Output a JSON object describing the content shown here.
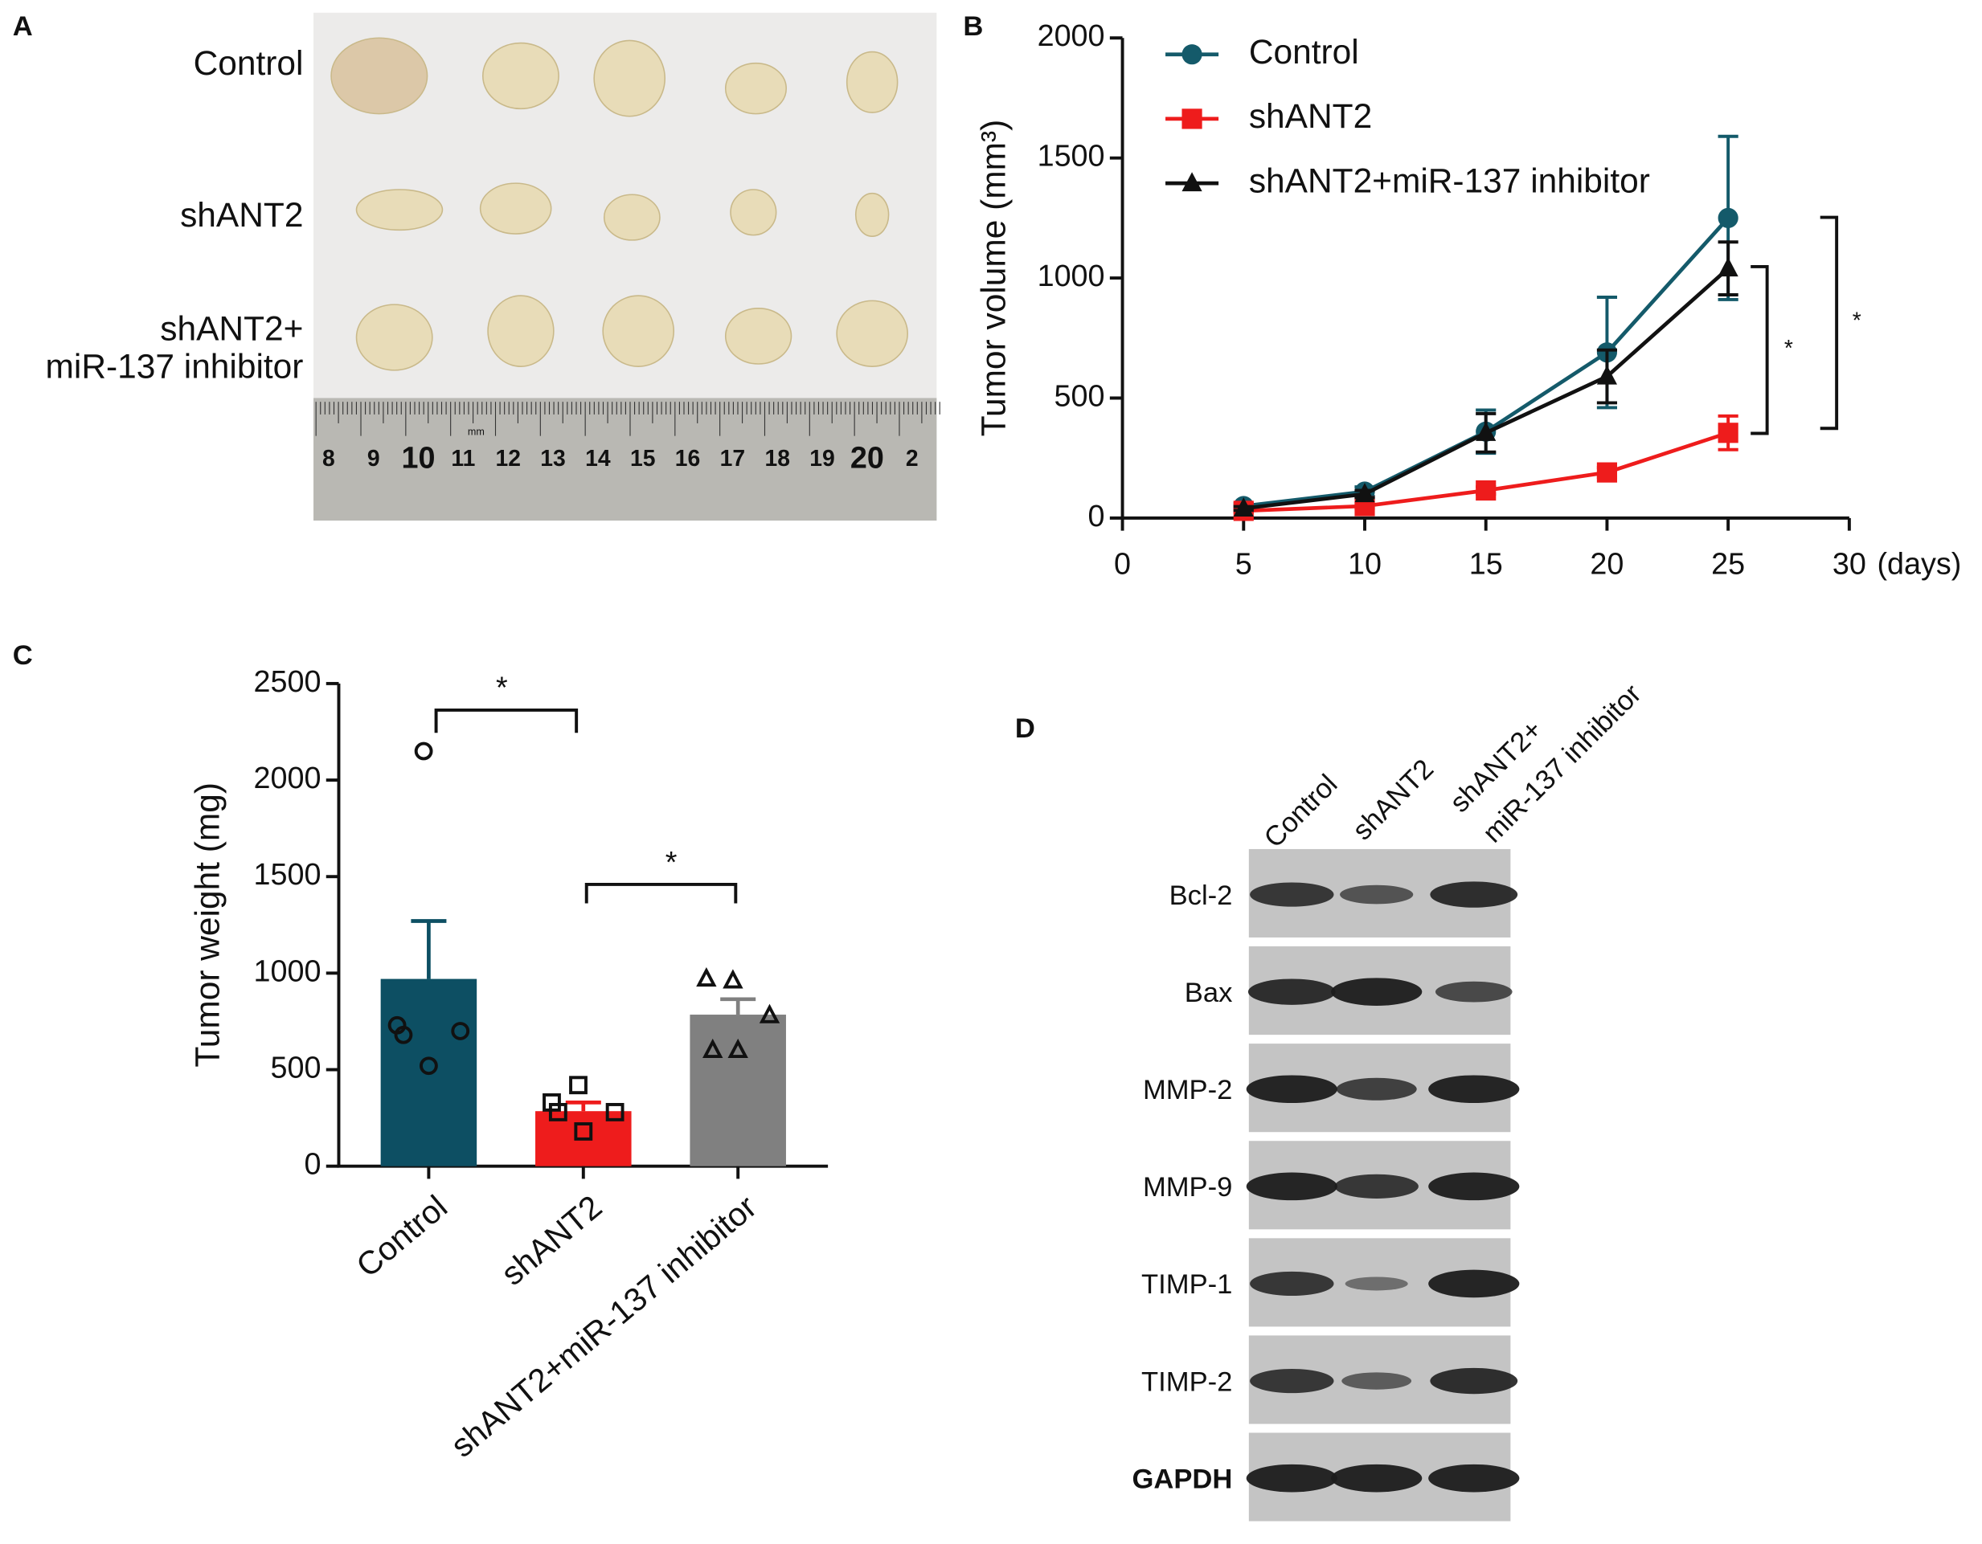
{
  "panel_labels": [
    "A",
    "B",
    "C",
    "D"
  ],
  "panel_a": {
    "row_labels": [
      "Control",
      "shANT2",
      "shANT2+",
      "miR-137 inhibitor"
    ],
    "ruler_numbers": [
      "8",
      "9",
      "10",
      "11",
      "12",
      "13",
      "14",
      "15",
      "16",
      "17",
      "18",
      "19",
      "20",
      "2"
    ],
    "ruler_unit": "mm"
  },
  "chart_data": [
    {
      "type": "line",
      "y_label": "Tumor volume (mm³)",
      "x_label": "(days)",
      "x": [
        5,
        10,
        15,
        20,
        25
      ],
      "series": [
        {
          "name": "Control",
          "color": "#145a6a",
          "marker": "circle",
          "values": [
            50,
            110,
            360,
            690,
            1250
          ],
          "errors": [
            10,
            20,
            90,
            230,
            340
          ]
        },
        {
          "name": "shANT2",
          "color": "#ee1c1c",
          "marker": "square",
          "values": [
            30,
            50,
            115,
            190,
            355
          ],
          "errors": [
            5,
            10,
            15,
            20,
            70
          ]
        },
        {
          "name": "shANT2+miR-137 inhibitor",
          "color": "#111111",
          "marker": "triangle",
          "values": [
            40,
            100,
            355,
            590,
            1040
          ],
          "errors": [
            8,
            15,
            80,
            110,
            110
          ]
        }
      ],
      "xlim": [
        0,
        30
      ],
      "xticks": [
        0,
        5,
        10,
        15,
        20,
        25,
        30
      ],
      "ylim": [
        0,
        2000
      ],
      "yticks": [
        0,
        500,
        1000,
        1500,
        2000
      ],
      "legend": "upper left",
      "annotations": [
        "*",
        "*"
      ]
    },
    {
      "type": "bar",
      "y_label": "Tumor weight (mg)",
      "categories": [
        "Control",
        "shANT2",
        "shANT2+miR-137 inhibitor"
      ],
      "values": [
        970,
        285,
        785
      ],
      "errors": [
        300,
        45,
        80
      ],
      "colors": [
        "#0d4f63",
        "#ee1c1c",
        "#808080"
      ],
      "points": [
        [
          2150,
          730,
          700,
          680,
          520
        ],
        [
          420,
          330,
          280,
          280,
          180
        ],
        [
          960,
          970,
          780,
          600,
          600
        ]
      ],
      "markers": [
        "circle",
        "square",
        "triangle"
      ],
      "ylim": [
        0,
        2500
      ],
      "yticks": [
        0,
        500,
        1000,
        1500,
        2000,
        2500
      ],
      "annotations": [
        "*",
        "*"
      ]
    }
  ],
  "panel_d": {
    "lanes": [
      "Control",
      "shANT2",
      "shANT2+",
      "miR-137 inhibitor"
    ],
    "proteins": [
      "Bcl-2",
      "Bax",
      "MMP-2",
      "MMP-9",
      "TIMP-1",
      "TIMP-2",
      "GAPDH"
    ]
  }
}
